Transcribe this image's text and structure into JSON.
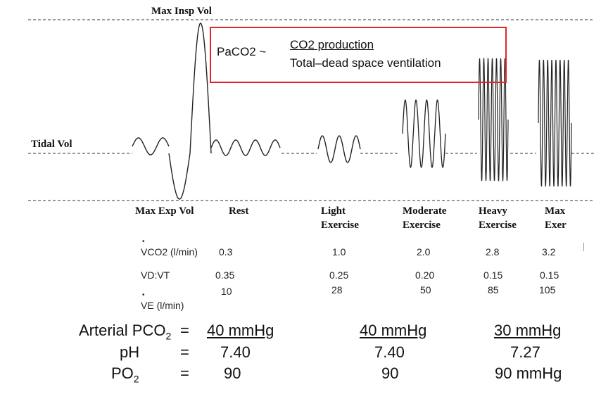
{
  "labels": {
    "max_insp_vol": "Max Insp Vol",
    "tidal_vol": "Tidal Vol",
    "max_exp_vol": "Max Exp Vol"
  },
  "formula": {
    "lhs": "PaCO2 ~",
    "numerator": "CO2 production",
    "denominator": "Total–dead space ventilation"
  },
  "columns": [
    {
      "line1": "Rest",
      "line2": ""
    },
    {
      "line1": "Light",
      "line2": "Exercise"
    },
    {
      "line1": "Moderate",
      "line2": "Exercise"
    },
    {
      "line1": "Heavy",
      "line2": "Exercise"
    },
    {
      "line1": "Max",
      "line2": "Exer"
    }
  ],
  "table": {
    "vco2_label": "VCO2 (l/min)",
    "vco2": [
      "0.3",
      "1.0",
      "2.0",
      "2.8",
      "3.2"
    ],
    "vdvt_label": "VD:VT",
    "vdvt": [
      "0.35",
      "0.25",
      "0.20",
      "0.15",
      "0.15"
    ],
    "ve_label": "VE (l/min)",
    "ve": [
      "10",
      "28",
      "50",
      "85",
      "105"
    ]
  },
  "blood": {
    "pco2_label_main": "Arterial PCO",
    "pco2_label_sub": "2",
    "eq": "=",
    "pco2": [
      "40 mmHg",
      "40 mmHg",
      "30 mmHg"
    ],
    "ph_label": "pH",
    "ph": [
      "7.40",
      "7.40",
      "7.27"
    ],
    "po2_label_main": "PO",
    "po2_label_sub": "2",
    "po2": [
      "90",
      "90",
      "90 mmHg"
    ]
  },
  "colors": {
    "box": "#e0262b",
    "line": "#222222"
  }
}
